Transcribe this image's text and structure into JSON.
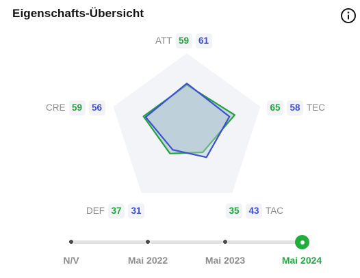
{
  "header": {
    "title": "Eigenschafts-Übersicht",
    "info_icon": "info-icon"
  },
  "axes": [
    {
      "key": "att",
      "name": "ATT",
      "green": "59",
      "blue": "61"
    },
    {
      "key": "tec",
      "name": "TEC",
      "green": "65",
      "blue": "58"
    },
    {
      "key": "tac",
      "name": "TAC",
      "green": "35",
      "blue": "43"
    },
    {
      "key": "def",
      "name": "DEF",
      "green": "37",
      "blue": "31"
    },
    {
      "key": "cre",
      "name": "CRE",
      "green": "59",
      "blue": "56"
    }
  ],
  "chart_data": {
    "type": "radar",
    "axes": [
      "ATT",
      "TEC",
      "TAC",
      "DEF",
      "CRE"
    ],
    "range": [
      0,
      100
    ],
    "series": [
      {
        "values": [
          59,
          65,
          35,
          37,
          59
        ],
        "color": "#22a33a"
      },
      {
        "values": [
          61,
          58,
          43,
          31,
          56
        ],
        "color": "#3d4fd6"
      }
    ],
    "fill_color": "#b5ccd6",
    "background_color": "#f3f4f8"
  },
  "timeline": {
    "items": [
      {
        "label": "N/V"
      },
      {
        "label": "Mai 2022"
      },
      {
        "label": "Mai 2023"
      },
      {
        "label": "Mai 2024"
      }
    ],
    "active_label": "Mai 2024",
    "active_color": "#1fae3c"
  }
}
